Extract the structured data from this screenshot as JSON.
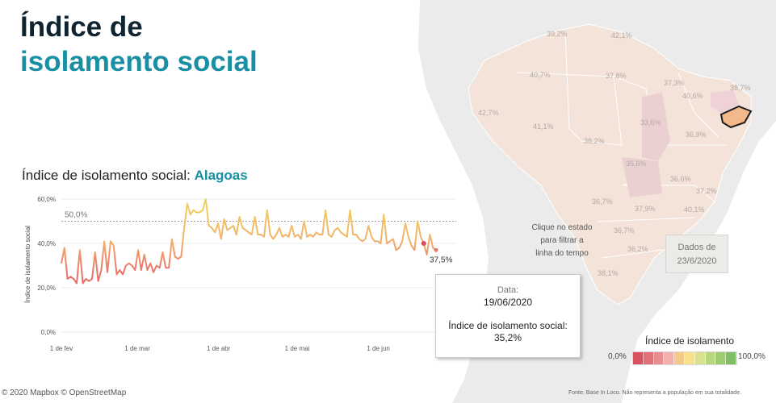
{
  "header": {
    "title_line1": "Índice de",
    "title_line2": "isolamento social"
  },
  "chart": {
    "title_prefix": "Índice de isolamento social:",
    "state": "Alagoas",
    "y_axis_label": "Índice de isolamento social",
    "y_ticks": [
      "60,0%",
      "40,0%",
      "20,0%",
      "0,0%"
    ],
    "x_ticks": [
      "1 de fev",
      "1 de mar",
      "1 de abr",
      "1 de mai",
      "1 de jun",
      "1"
    ],
    "reference_label": "50,0%",
    "last_value_label": "37,5%"
  },
  "chart_data": {
    "type": "line",
    "title": "Índice de isolamento social: Alagoas",
    "ylabel": "Índice de isolamento social",
    "ylim": [
      0,
      60
    ],
    "reference_line": 50,
    "x_start": "2020-02-01",
    "x_end": "2020-06-23",
    "values": [
      31,
      38,
      24,
      25,
      24,
      22,
      37,
      22,
      24,
      23,
      24,
      36,
      23,
      28,
      41,
      27,
      41,
      39,
      26,
      28,
      26,
      30,
      31,
      30,
      28,
      37,
      28,
      35,
      28,
      31,
      27,
      30,
      29,
      36,
      29,
      29,
      42,
      34,
      33,
      34,
      47,
      58,
      53,
      55,
      54,
      54,
      55,
      60,
      48,
      47,
      45,
      49,
      42,
      51,
      46,
      47,
      48,
      44,
      52,
      47,
      46,
      45,
      44,
      52,
      44,
      44,
      43,
      55,
      44,
      42,
      44,
      47,
      43,
      44,
      43,
      48,
      43,
      44,
      42,
      50,
      43,
      44,
      43,
      45,
      44,
      44,
      55,
      44,
      43,
      46,
      47,
      45,
      44,
      43,
      55,
      44,
      44,
      42,
      41,
      42,
      48,
      43,
      41,
      41,
      40,
      53,
      40,
      41,
      42,
      37,
      38,
      41,
      49,
      43,
      39,
      37,
      50,
      43,
      40,
      35,
      44,
      38,
      37
    ],
    "series": [
      {
        "name": "Alagoas",
        "color_low": "#d94b5e",
        "color_high": "#f0cf5a"
      }
    ]
  },
  "map": {
    "labels": [
      "39,2%",
      "42,1%",
      "40,7%",
      "37,8%",
      "37,3%",
      "38,7%",
      "40,6%",
      "42,7%",
      "41,1%",
      "33,6%",
      "36,9%",
      "38,2%",
      "35,6%",
      "36,6%",
      "37,2%",
      "36,7%",
      "37,9%",
      "40,1%",
      "36,7%",
      "36,2%",
      "38,1%"
    ],
    "hint": [
      "Clique no estado",
      "para filtrar a",
      "linha do tempo"
    ],
    "date_label": "Dados de",
    "date_value": "23/6/2020"
  },
  "tooltip": {
    "date_key": "Data:",
    "date_value": "19/06/2020",
    "value_key": "Índice de isolamento social:",
    "value": "35,2%"
  },
  "legend": {
    "title": "Índice de isolamento",
    "min": "0,0%",
    "max": "100,0%",
    "colors": [
      "#d9525f",
      "#e0707a",
      "#e98c8f",
      "#f3aeae",
      "#f5c98a",
      "#f7e08a",
      "#d7e38c",
      "#b8d67e",
      "#9ccb72",
      "#7fbf63"
    ]
  },
  "footer": {
    "credit": "© 2020 Mapbox © OpenStreetMap",
    "source": "Fonte: Base In Loco. Não representa a população em sua totalidade."
  }
}
